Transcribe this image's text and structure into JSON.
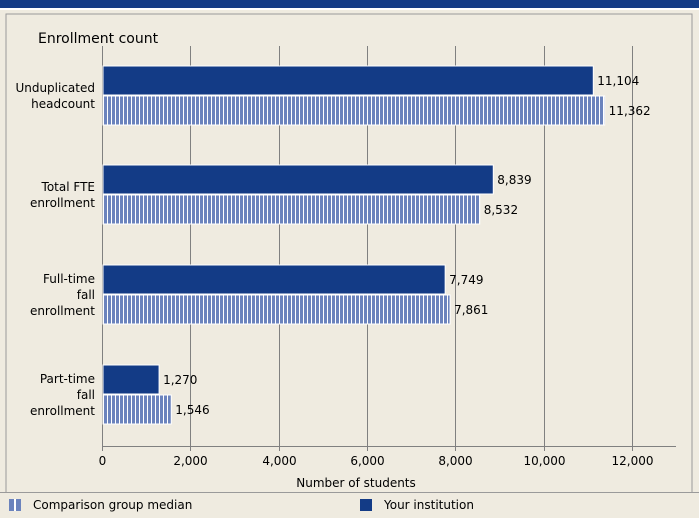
{
  "chart_data": {
    "type": "bar",
    "orientation": "horizontal",
    "title": "Enrollment count",
    "xlabel": "Number of students",
    "ylabel": "",
    "categories": [
      [
        "Unduplicated",
        "headcount"
      ],
      [
        "Total FTE",
        "enrollment"
      ],
      [
        "Full-time",
        "fall",
        "enrollment"
      ],
      [
        "Part-time",
        "fall",
        "enrollment"
      ]
    ],
    "series": [
      {
        "name": "Your institution",
        "values": [
          11104,
          8839,
          7749,
          1270
        ],
        "labels": [
          "11,104",
          "8,839",
          "7,749",
          "1,270"
        ],
        "color": "#133b86",
        "pattern": "solid"
      },
      {
        "name": "Comparison group median",
        "values": [
          11362,
          8532,
          7861,
          1546
        ],
        "labels": [
          "11,362",
          "8,532",
          "7,861",
          "1,546"
        ],
        "color": "#6b83bd",
        "pattern": "vertical-stripes"
      }
    ],
    "xlim": [
      0,
      13000
    ],
    "xticks": [
      0,
      2000,
      4000,
      6000,
      8000,
      10000,
      12000
    ],
    "xtick_labels": [
      "0",
      "2,000",
      "4,000",
      "6,000",
      "8,000",
      "10,000",
      "12,000"
    ],
    "grid": true,
    "legend": "bottom"
  },
  "legend": {
    "items": [
      {
        "label": "Comparison group median",
        "color": "#6b83bd",
        "pattern": "vertical-stripes"
      },
      {
        "label": "Your institution",
        "color": "#133b86",
        "pattern": "solid"
      }
    ]
  },
  "colors": {
    "header_bar": "#133b86",
    "background": "#efebe0",
    "institution": "#133b86",
    "comparison": "#6b83bd"
  }
}
